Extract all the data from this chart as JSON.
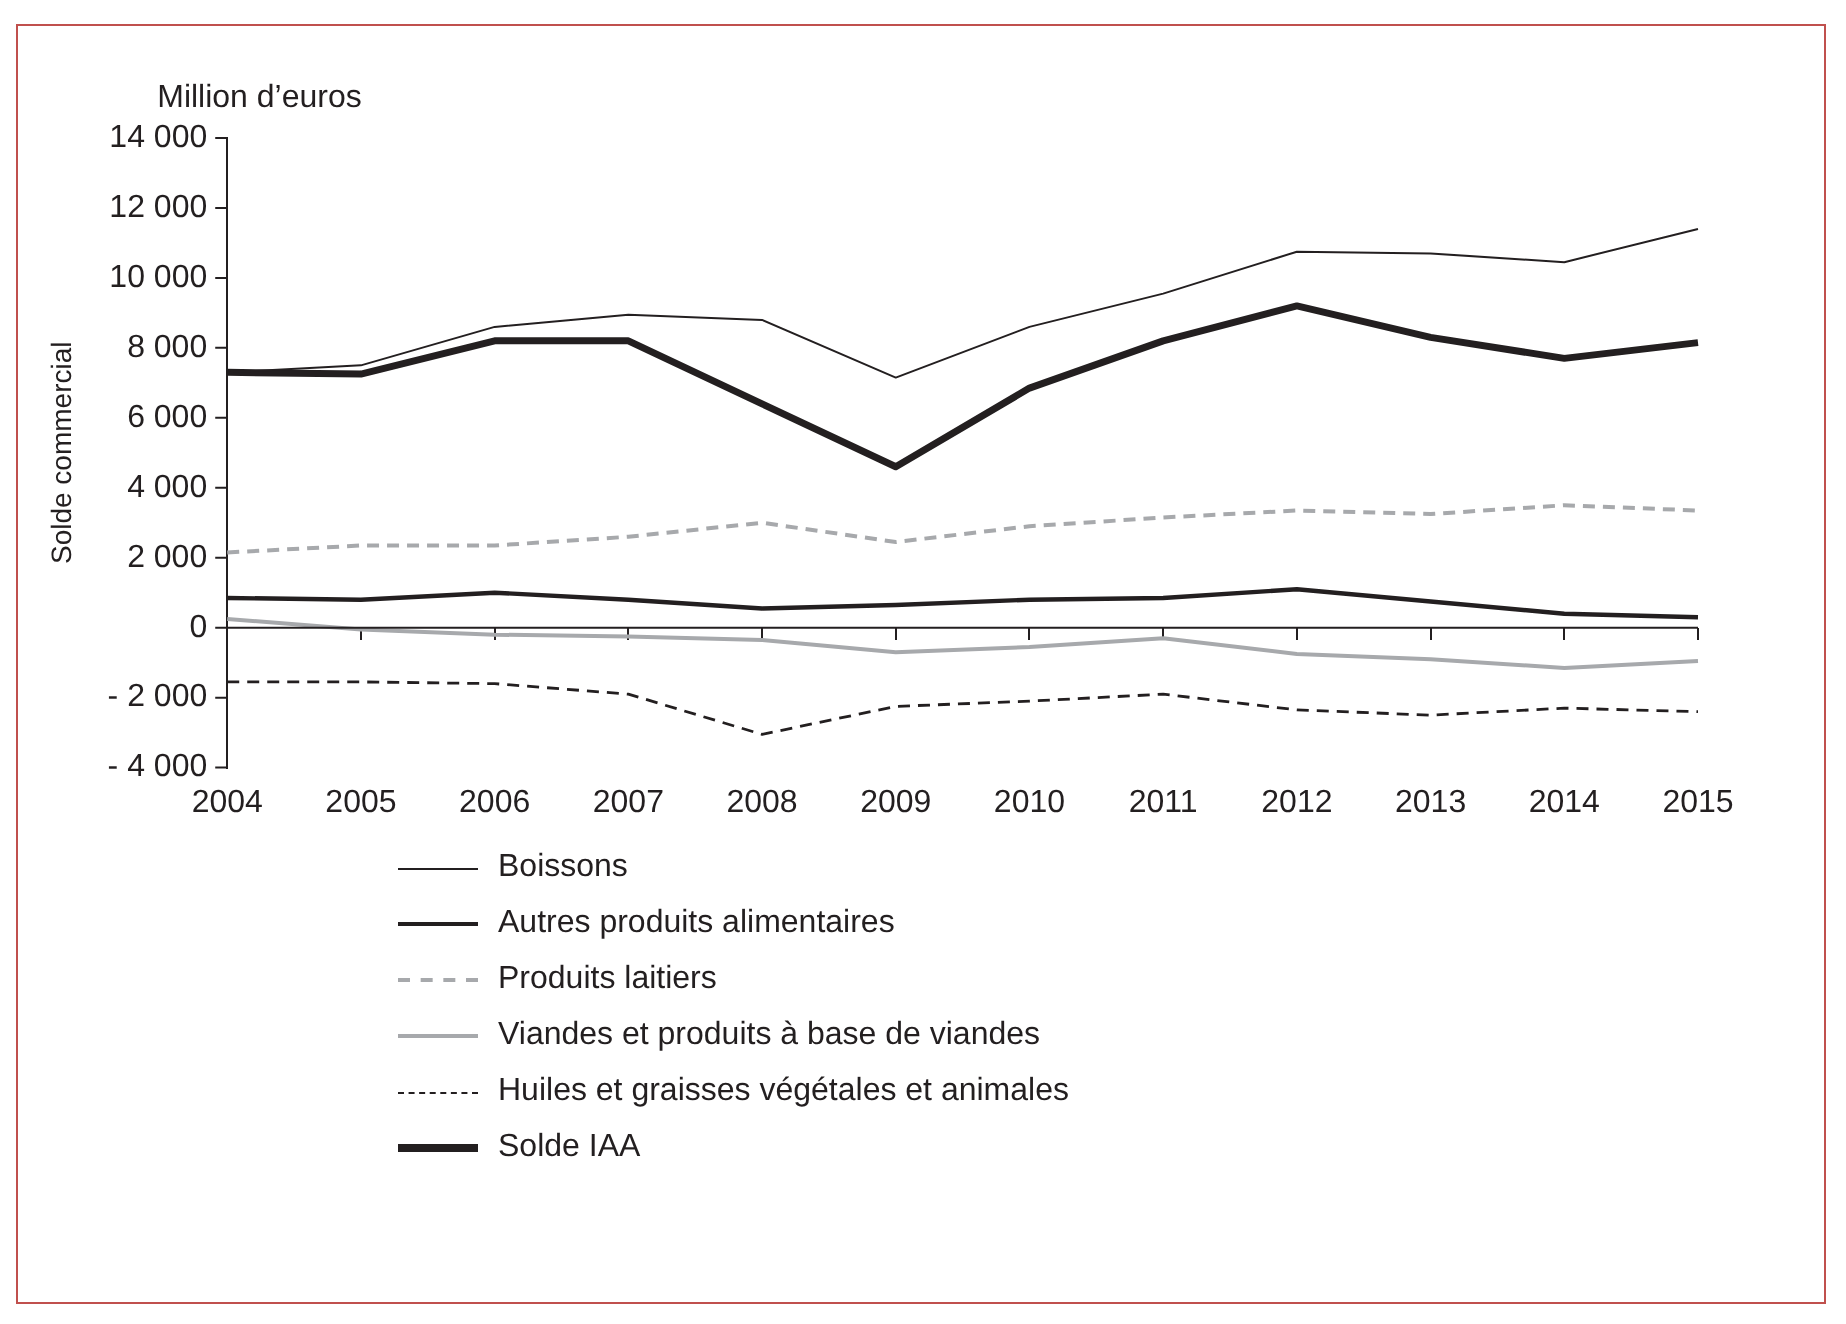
{
  "chart_data": {
    "type": "line",
    "annotations": [
      "Million d’euros"
    ],
    "ylabel": "Solde commercial",
    "categories": [
      "2004",
      "2005",
      "2006",
      "2007",
      "2008",
      "2009",
      "2010",
      "2011",
      "2012",
      "2013",
      "2014",
      "2015"
    ],
    "series": [
      {
        "name": "Boissons",
        "color": "#231f20",
        "line_style": "solid",
        "values": [
          7300,
          7500,
          8600,
          8950,
          8800,
          7150,
          8600,
          9550,
          10750,
          10700,
          10450,
          11400
        ]
      },
      {
        "name": "Autres produits alimentaires",
        "color": "#231f20",
        "line_style": "solid",
        "values": [
          850,
          800,
          1000,
          800,
          550,
          650,
          800,
          850,
          1100,
          750,
          400,
          300
        ]
      },
      {
        "name": "Produits laitiers",
        "color": "#a7a9ac",
        "line_style": "dashed",
        "values": [
          2150,
          2350,
          2350,
          2600,
          3000,
          2450,
          2900,
          3150,
          3350,
          3250,
          3500,
          3350
        ]
      },
      {
        "name": "Viandes et produits à base de viandes",
        "color": "#a7a9ac",
        "line_style": "solid",
        "values": [
          250,
          -50,
          -200,
          -250,
          -350,
          -700,
          -550,
          -300,
          -750,
          -900,
          -1150,
          -950
        ]
      },
      {
        "name": "Huiles et graisses végétales et animales",
        "color": "#231f20",
        "line_style": "dashed",
        "values": [
          -1550,
          -1550,
          -1600,
          -1900,
          -3050,
          -2250,
          -2100,
          -1900,
          -2350,
          -2500,
          -2300,
          -2400
        ]
      },
      {
        "name": "Solde IAA",
        "color": "#231f20",
        "line_style": "solid",
        "values": [
          7300,
          7250,
          8200,
          8200,
          6400,
          4600,
          6850,
          8200,
          9200,
          8300,
          7700,
          8150
        ]
      }
    ],
    "ylim": [
      -4000,
      14000
    ],
    "yticks": [
      {
        "value": -4000,
        "label": "- 4 000"
      },
      {
        "value": -2000,
        "label": "- 2 000"
      },
      0,
      {
        "value": 2000,
        "label": "2 000"
      },
      {
        "value": 4000,
        "label": "4 000"
      },
      {
        "value": 6000,
        "label": "6 000"
      },
      {
        "value": 8000,
        "label": "8 000"
      },
      {
        "value": 10000,
        "label": "10 000"
      },
      {
        "value": 12000,
        "label": "12 000"
      },
      {
        "value": 14000,
        "label": "14 000"
      }
    ],
    "ref_lines": [
      {
        "axis": "y",
        "value": 0,
        "color": "#231f20",
        "line_style": "solid"
      }
    ],
    "grid": false,
    "legend": "bottom",
    "marker": "none"
  }
}
